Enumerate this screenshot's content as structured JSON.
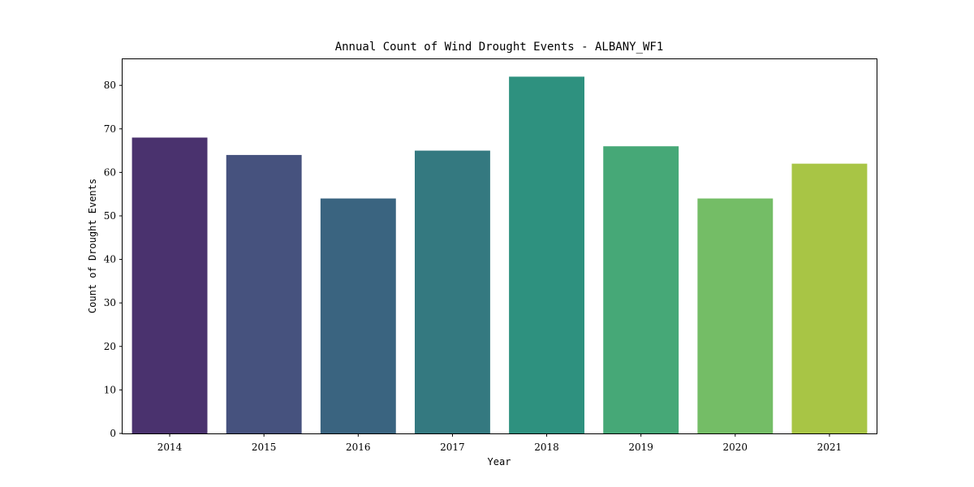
{
  "chart_data": {
    "type": "bar",
    "title": "Annual Count of Wind Drought Events - ALBANY_WF1",
    "xlabel": "Year",
    "ylabel": "Count of Drought Events",
    "categories": [
      "2014",
      "2015",
      "2016",
      "2017",
      "2018",
      "2019",
      "2020",
      "2021"
    ],
    "values": [
      68,
      64,
      54,
      65,
      82,
      66,
      54,
      62
    ],
    "colors": [
      "#4a326e",
      "#46527e",
      "#3a6480",
      "#347980",
      "#2e917f",
      "#46a877",
      "#74bd66",
      "#a8c545"
    ],
    "ylim": [
      0,
      86
    ],
    "yticks": [
      0,
      10,
      20,
      30,
      40,
      50,
      60,
      70,
      80
    ],
    "grid": false,
    "legend": "none"
  }
}
